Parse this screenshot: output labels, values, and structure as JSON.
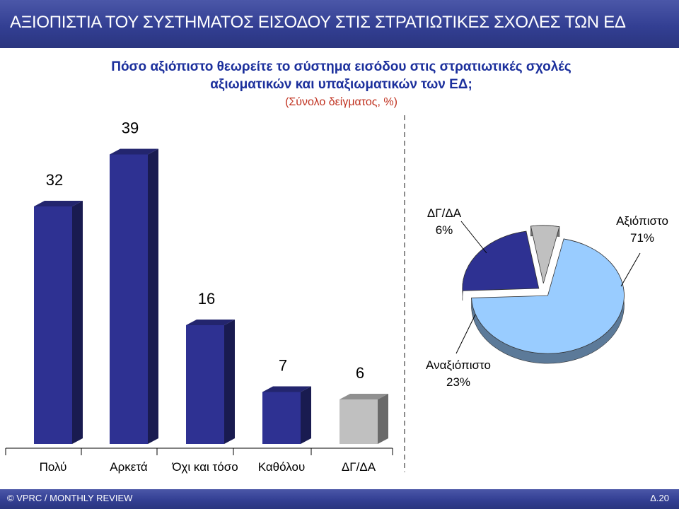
{
  "header": {
    "title": "ΑΞΙΟΠΙΣΤΙΑ ΤΟΥ ΣΥΣΤΗΜΑΤΟΣ ΕΙΣΟΔΟΥ ΣΤΙΣ ΣΤΡΑΤΙΩΤΙΚΕΣ ΣΧΟΛΕΣ ΤΩΝ ΕΔ"
  },
  "question": {
    "line1": "Πόσο αξιόπιστο θεωρείτε το σύστημα εισόδου στις στρατιωτικές σχολές",
    "line2": "αξιωματικών και υπαξιωματικών των ΕΔ;",
    "subtitle": "(Σύνολο δείγματος, %)"
  },
  "chart_data": [
    {
      "type": "bar",
      "categories": [
        "Πολύ",
        "Αρκετά",
        "Όχι και τόσο",
        "Καθόλου",
        "ΔΓ/ΔΑ"
      ],
      "values": [
        32,
        39,
        16,
        7,
        6
      ],
      "colors": [
        "#2e3192",
        "#2e3192",
        "#2e3192",
        "#2e3192",
        "#c0c0c0"
      ]
    },
    {
      "type": "pie",
      "slices": [
        {
          "label": "Αξιόπιστο",
          "value": 71,
          "value_label": "71%",
          "color": "#99ccff"
        },
        {
          "label": "Αναξιόπιστο",
          "value": 23,
          "value_label": "23%",
          "color": "#2e3192"
        },
        {
          "label": "ΔΓ/ΔΑ",
          "value": 6,
          "value_label": "6%",
          "color": "#c0c0c0"
        }
      ]
    }
  ],
  "footer": {
    "source": "© VPRC / MONTHLY REVIEW",
    "page": "Δ.20"
  }
}
